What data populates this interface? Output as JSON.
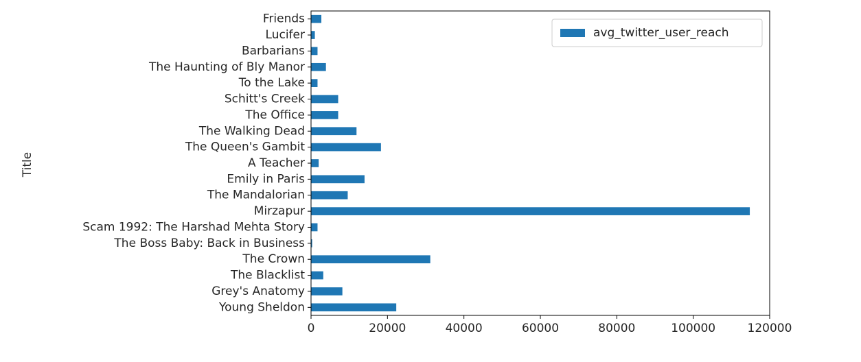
{
  "chart_data": {
    "type": "bar",
    "orientation": "horizontal",
    "ylabel": "Title",
    "xlabel": "",
    "categories": [
      "Young Sheldon",
      "Grey's Anatomy",
      "The Blacklist",
      "The Crown",
      "The Boss Baby: Back in Business",
      "Scam 1992: The Harshad Mehta Story",
      "Mirzapur",
      "The Mandalorian",
      "Emily in Paris",
      "A Teacher",
      "The Queen's Gambit",
      "The Walking Dead",
      "The Office",
      "Schitt's Creek",
      "To the Lake",
      "The Haunting of Bly Manor",
      "Barbarians",
      "Lucifer",
      "Friends"
    ],
    "series": [
      {
        "name": "avg_twitter_user_reach",
        "color": "#1f77b4",
        "values": [
          22300,
          8200,
          3200,
          31200,
          300,
          1700,
          114800,
          9600,
          14000,
          2000,
          18300,
          11900,
          7100,
          7100,
          1700,
          3900,
          1700,
          1000,
          2700
        ]
      }
    ],
    "xlim": [
      0,
      120000
    ],
    "xticks": [
      0,
      20000,
      40000,
      60000,
      80000,
      100000,
      120000
    ],
    "xtick_labels": [
      "0",
      "20000",
      "40000",
      "60000",
      "80000",
      "100000",
      "120000"
    ],
    "grid": false,
    "legend_position": "upper-right"
  }
}
